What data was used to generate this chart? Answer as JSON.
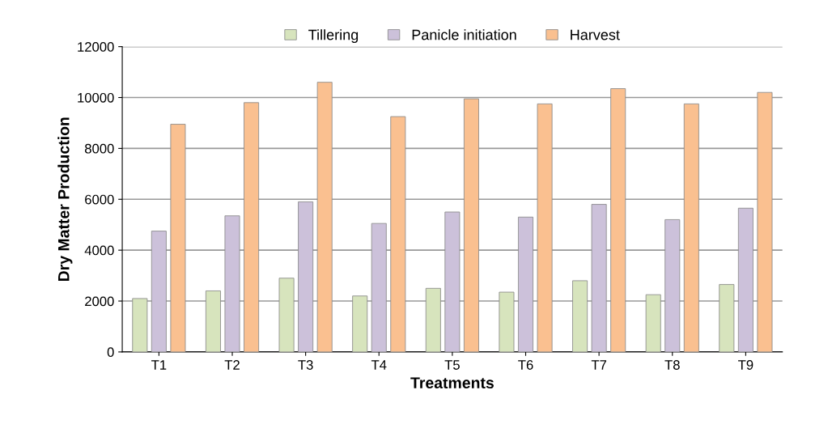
{
  "chart_data": {
    "type": "bar",
    "xlabel": "Treatments",
    "ylabel": "Dry Matter Production",
    "categories": [
      "T1",
      "T2",
      "T3",
      "T4",
      "T5",
      "T6",
      "T7",
      "T8",
      "T9"
    ],
    "series": [
      {
        "name": "Tillering",
        "color": "#d7e4bd",
        "values": [
          2100,
          2400,
          2900,
          2200,
          2500,
          2350,
          2800,
          2250,
          2650
        ]
      },
      {
        "name": "Panicle initiation",
        "color": "#ccc1da",
        "values": [
          4750,
          5350,
          5900,
          5050,
          5500,
          5300,
          5800,
          5200,
          5650
        ]
      },
      {
        "name": "Harvest",
        "color": "#fac090",
        "values": [
          8950,
          9800,
          10600,
          9250,
          9950,
          9750,
          10350,
          9750,
          10200
        ]
      }
    ],
    "ylim": [
      0,
      12000
    ],
    "yticks": [
      0,
      2000,
      4000,
      6000,
      8000,
      10000,
      12000
    ],
    "grid": "y",
    "legend": "top"
  }
}
